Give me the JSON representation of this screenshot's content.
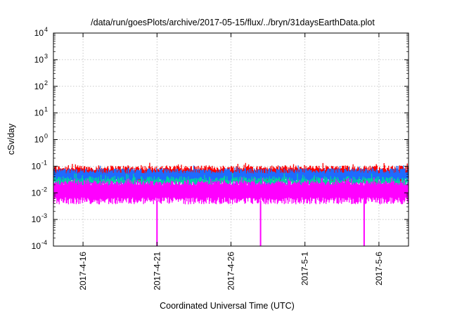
{
  "chart_data": {
    "type": "area",
    "title": "/data/run/goesPlots/archive/2017-05-15/flux/../bryn/31daysEarthData.plot",
    "xlabel": "Coordinated Universal Time (UTC)",
    "ylabel": "cSv/day",
    "yscale": "log",
    "ylim": [
      0.0001,
      10000
    ],
    "xlim": [
      "2017-04-14",
      "2017-05-08"
    ],
    "grid": true,
    "legend": "none",
    "x_ticks": [
      "2017-4-16",
      "2017-4-21",
      "2017-4-26",
      "2017-5-1",
      "2017-5-6"
    ],
    "y_ticks": [
      {
        "value": 10000,
        "base": "10",
        "exp": "4"
      },
      {
        "value": 1000,
        "base": "10",
        "exp": "3"
      },
      {
        "value": 100,
        "base": "10",
        "exp": "2"
      },
      {
        "value": 10,
        "base": "10",
        "exp": "1"
      },
      {
        "value": 1,
        "base": "10",
        "exp": "0"
      },
      {
        "value": 0.1,
        "base": "10",
        "exp": "-1"
      },
      {
        "value": 0.01,
        "base": "10",
        "exp": "-2"
      },
      {
        "value": 0.001,
        "base": "10",
        "exp": "-3"
      },
      {
        "value": 0.0001,
        "base": "10",
        "exp": "-4"
      }
    ],
    "series": [
      {
        "color": "#ff0000",
        "typical_low": 0.03,
        "typical_high": 0.09
      },
      {
        "color": "#1e6bff",
        "typical_low": 0.025,
        "typical_high": 0.07
      },
      {
        "color": "#00d2a0",
        "typical_low": 0.02,
        "typical_high": 0.035
      },
      {
        "color": "#ff00ff",
        "typical_low": 0.005,
        "typical_high": 0.025,
        "dropouts": [
          "2017-04-21",
          "2017-04-28",
          "2017-05-05"
        ]
      }
    ]
  }
}
